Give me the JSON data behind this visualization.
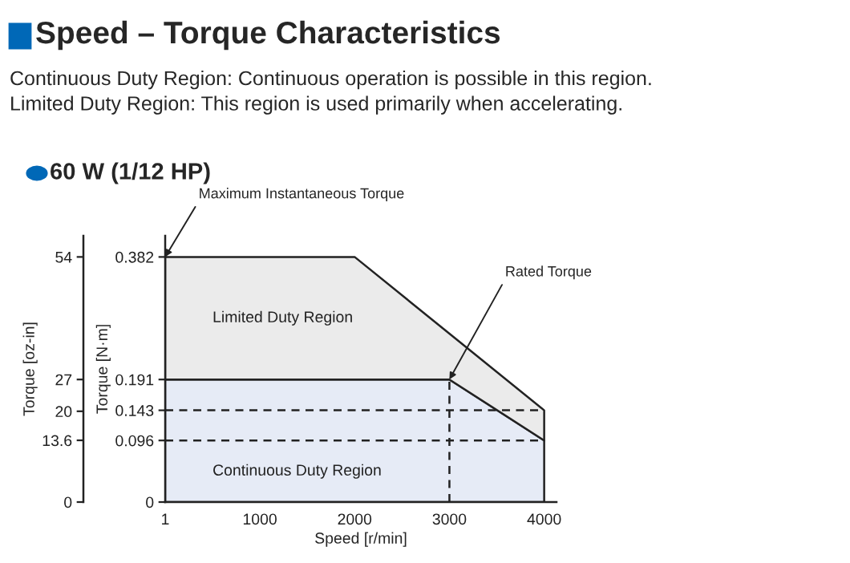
{
  "chart_data": {
    "type": "area",
    "title": "Speed – Torque Characteristics",
    "subtitle": "Continuous Duty Region: Continuous operation is possible in this region.\nLimited Duty Region: This region is used primarily when accelerating.",
    "xlabel": "Speed [r/min]",
    "ylabel": "Torque [N·m]",
    "y2label": "Torque [oz-in]",
    "series": [
      {
        "name": "Continuous Duty Region",
        "color": "#e6ebf6",
        "values": [
          0.191,
          0.191,
          0.191,
          0.096
        ]
      },
      {
        "name": "Limited Duty Region",
        "color": "#ebebeb",
        "values": [
          0.191,
          0.191,
          0.0715,
          0.047
        ]
      }
    ],
    "x": [
      1,
      2000,
      3000,
      4000
    ],
    "stacked": true,
    "xlim": [
      1,
      4130
    ],
    "xticks": [
      1,
      1000,
      2000,
      3000,
      4000
    ],
    "ylim": [
      0,
      0.415
    ],
    "yticks": [
      0,
      0.096,
      0.143,
      0.191,
      0.382
    ],
    "y2lim": [
      0,
      58.66
    ],
    "y2ticks": [
      0,
      13.6,
      20,
      27,
      54
    ],
    "ref_lines": [
      {
        "axis": "y",
        "value": 0.143,
        "line_style": "dashed"
      },
      {
        "axis": "y",
        "value": 0.096,
        "line_style": "dashed"
      },
      {
        "axis": "x",
        "value": 3000,
        "line_style": "dashed"
      }
    ],
    "annotations": [
      "60 W (1/12 HP)",
      {
        "text": "Maximum Instantaneous Torque",
        "x": 1,
        "y": 0.382
      },
      {
        "text": "Rated Torque",
        "x": 3000,
        "y": 0.191
      }
    ],
    "grid": false,
    "legend": false
  }
}
